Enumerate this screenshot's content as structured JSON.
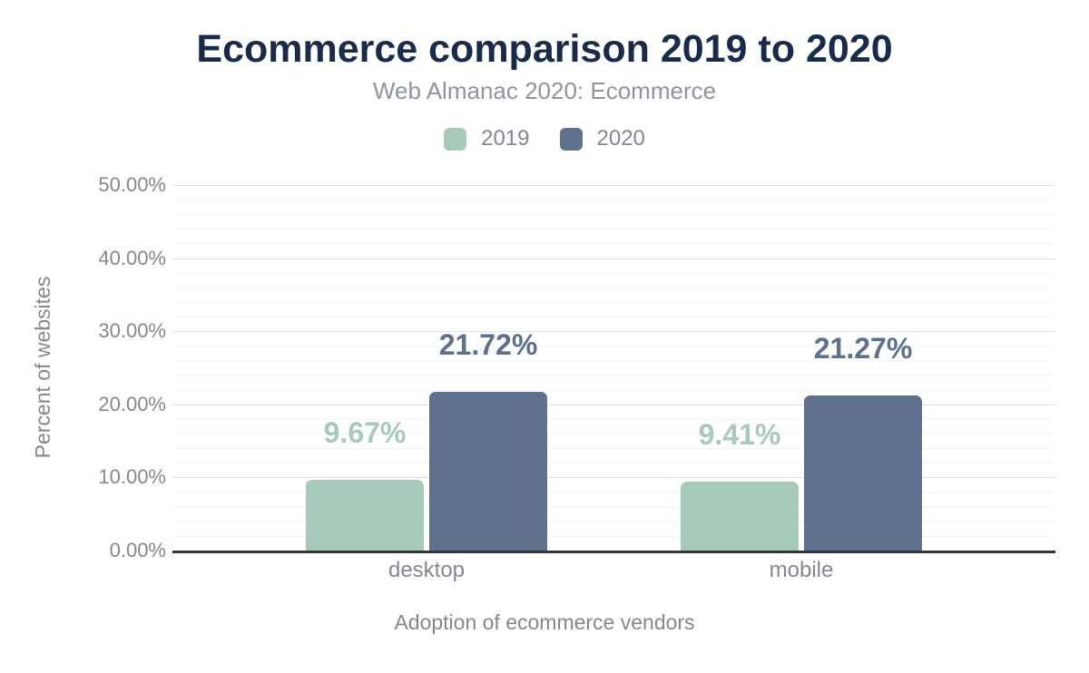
{
  "chart_data": {
    "type": "bar",
    "title": "Ecommerce comparison 2019 to 2020",
    "subtitle": "Web Almanac 2020: Ecommerce",
    "categories": [
      "desktop",
      "mobile"
    ],
    "series": [
      {
        "name": "2019",
        "color": "#a8cbb9",
        "values": [
          9.67,
          9.41
        ],
        "value_labels": [
          "9.67%",
          "9.41%"
        ]
      },
      {
        "name": "2020",
        "color": "#5f708c",
        "values": [
          21.72,
          21.27
        ],
        "value_labels": [
          "21.72%",
          "21.27%"
        ]
      }
    ],
    "xlabel": "Adoption of ecommerce vendors",
    "ylabel": "Percent of websites",
    "ylim": [
      0,
      50
    ],
    "ytick_step": 10,
    "minor_gridline_step": 2,
    "ytick_labels": [
      "0.00%",
      "10.00%",
      "20.00%",
      "30.00%",
      "40.00%",
      "50.00%"
    ],
    "grid": true,
    "legend_position": "top",
    "colors": {
      "title": "#1a2b49",
      "subtitle": "#8f959b",
      "axis_text": "#84888e",
      "axis_line": "#30343a",
      "major_gridline": "#e0e2e5",
      "minor_gridline": "#f4f5f6"
    }
  }
}
